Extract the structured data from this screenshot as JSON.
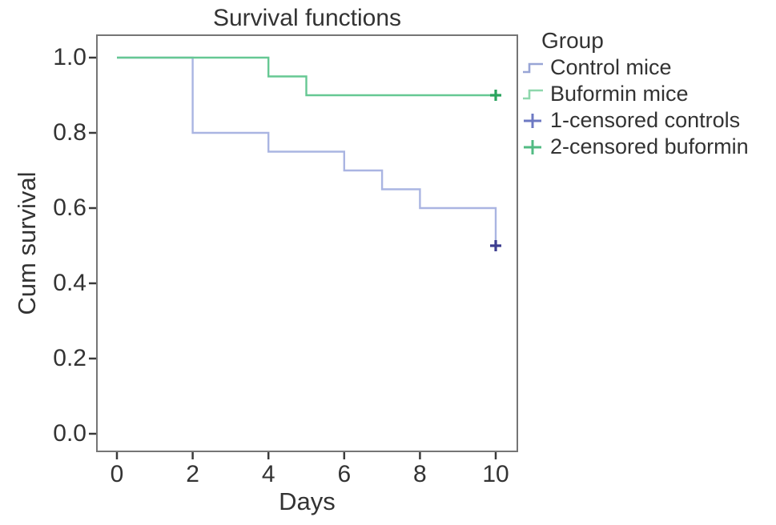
{
  "chart_data": {
    "type": "line",
    "subtype": "kaplan-meier-step",
    "title": "Survival functions",
    "xlabel": "Days",
    "ylabel": "Cum survival",
    "xlim": [
      0,
      10.6
    ],
    "ylim": [
      -0.05,
      1.06
    ],
    "grid": false,
    "axes": {
      "x_ticks": [
        {
          "v": 0,
          "label": "0"
        },
        {
          "v": 2,
          "label": "2"
        },
        {
          "v": 4,
          "label": "4"
        },
        {
          "v": 6,
          "label": "6"
        },
        {
          "v": 8,
          "label": "8"
        },
        {
          "v": 10,
          "label": "10"
        }
      ],
      "y_ticks": [
        {
          "v": 0.0,
          "label": "0.0"
        },
        {
          "v": 0.2,
          "label": "0.2"
        },
        {
          "v": 0.4,
          "label": "0.4"
        },
        {
          "v": 0.6,
          "label": "0.6"
        },
        {
          "v": 0.8,
          "label": "0.8"
        },
        {
          "v": 1.0,
          "label": "1.0"
        }
      ]
    },
    "series": [
      {
        "name": "Control mice",
        "color": "#aab5e2",
        "points": [
          [
            0,
            1.0
          ],
          [
            2,
            1.0
          ],
          [
            2,
            0.8
          ],
          [
            4,
            0.8
          ],
          [
            4,
            0.75
          ],
          [
            6,
            0.75
          ],
          [
            6,
            0.7
          ],
          [
            7,
            0.7
          ],
          [
            7,
            0.65
          ],
          [
            8,
            0.65
          ],
          [
            8,
            0.6
          ],
          [
            10,
            0.6
          ],
          [
            10,
            0.5
          ]
        ]
      },
      {
        "name": "Buformin mice",
        "color": "#66c893",
        "points": [
          [
            0,
            1.0
          ],
          [
            4,
            1.0
          ],
          [
            4,
            0.95
          ],
          [
            5,
            0.95
          ],
          [
            5,
            0.9
          ],
          [
            10,
            0.9
          ]
        ]
      }
    ],
    "censored_markers": [
      {
        "name": "1-censored controls",
        "x": 10,
        "y": 0.5,
        "color": "#3d3e90"
      },
      {
        "name": "2-censored buformin",
        "x": 10,
        "y": 0.9,
        "color": "#2aa45e"
      }
    ]
  },
  "legend": {
    "title": "Group",
    "items": [
      {
        "label": "Control mice",
        "glyph": "step",
        "color": "#98a5d6"
      },
      {
        "label": "Buformin mice",
        "glyph": "step",
        "color": "#8ed7ac"
      },
      {
        "label": "1-censored controls",
        "glyph": "plus",
        "color": "#6d79c3"
      },
      {
        "label": "2-censored buformin",
        "glyph": "plus",
        "color": "#52bb83"
      }
    ]
  },
  "style_colors": {
    "plot_border": "#757575",
    "tick": "#3a3a3a",
    "text": "#333333",
    "background": "#ffffff"
  }
}
